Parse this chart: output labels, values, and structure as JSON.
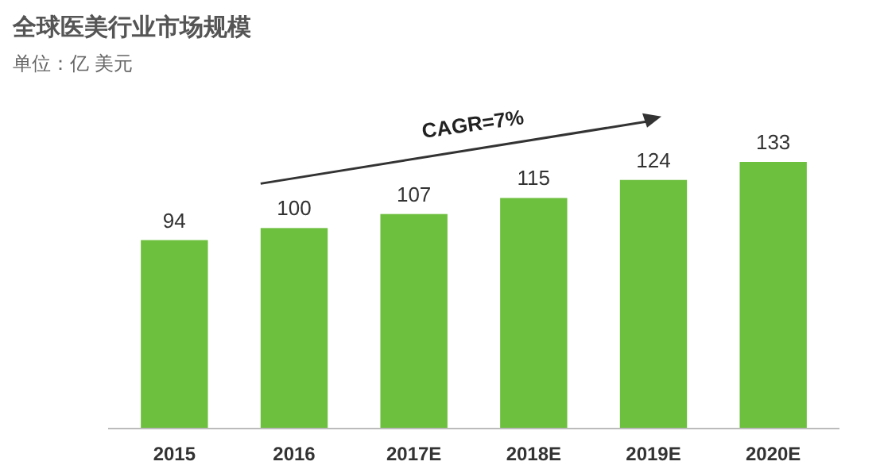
{
  "chart_data": {
    "type": "bar",
    "title": "全球医美行业市场规模",
    "subtitle": "单位：亿 美元",
    "categories": [
      "2015",
      "2016",
      "2017E",
      "2018E",
      "2019E",
      "2020E"
    ],
    "values": [
      94,
      100,
      107,
      115,
      124,
      133
    ],
    "color": "#6dbf3e",
    "data_labels": true,
    "annotations": [
      "CAGR=7%"
    ]
  }
}
